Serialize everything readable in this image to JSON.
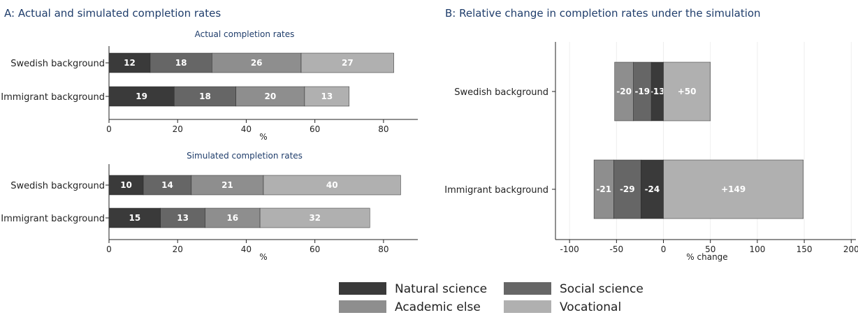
{
  "panel_a": {
    "title": "A: Actual and simulated completion rates"
  },
  "panel_b": {
    "title": "B: Relative change in completion rates under the simulation"
  },
  "colors": {
    "Natural science": "#3a3a3a",
    "Social science": "#666666",
    "Academic else": "#8e8e8e",
    "Vocational": "#b0b0b0"
  },
  "legend": [
    "Natural science",
    "Social science",
    "Academic else",
    "Vocational"
  ],
  "chart_data": [
    {
      "type": "bar",
      "orientation": "horizontal",
      "stacked": true,
      "title": "Actual completion rates",
      "xlabel": "%",
      "ylabel": "",
      "xlim": [
        0,
        90
      ],
      "xticks": [
        0,
        20,
        40,
        60,
        80
      ],
      "categories": [
        "Swedish background",
        "Immigrant background"
      ],
      "series": [
        {
          "name": "Natural science",
          "values": [
            12,
            19
          ]
        },
        {
          "name": "Social science",
          "values": [
            18,
            18
          ]
        },
        {
          "name": "Academic else",
          "values": [
            26,
            20
          ]
        },
        {
          "name": "Vocational",
          "values": [
            27,
            13
          ]
        }
      ]
    },
    {
      "type": "bar",
      "orientation": "horizontal",
      "stacked": true,
      "title": "Simulated completion rates",
      "xlabel": "%",
      "ylabel": "",
      "xlim": [
        0,
        90
      ],
      "xticks": [
        0,
        20,
        40,
        60,
        80
      ],
      "categories": [
        "Swedish background",
        "Immigrant background"
      ],
      "series": [
        {
          "name": "Natural science",
          "values": [
            10,
            15
          ]
        },
        {
          "name": "Social science",
          "values": [
            14,
            13
          ]
        },
        {
          "name": "Academic else",
          "values": [
            21,
            16
          ]
        },
        {
          "name": "Vocational",
          "values": [
            40,
            32
          ]
        }
      ]
    },
    {
      "type": "bar",
      "orientation": "horizontal",
      "stacked": true,
      "title": "",
      "xlabel": "% change",
      "ylabel": "",
      "xlim": [
        -115,
        205
      ],
      "xticks": [
        -100,
        -50,
        0,
        50,
        100,
        150,
        200
      ],
      "grid": true,
      "categories": [
        "Swedish background",
        "Immigrant background"
      ],
      "series": [
        {
          "name": "Natural science",
          "values": [
            -13,
            -24
          ],
          "labels": [
            "-13",
            "-24"
          ]
        },
        {
          "name": "Social science",
          "values": [
            -19,
            -29
          ],
          "labels": [
            "-19",
            "-29"
          ]
        },
        {
          "name": "Academic else",
          "values": [
            -20,
            -21
          ],
          "labels": [
            "-20",
            "-21"
          ]
        },
        {
          "name": "Vocational",
          "values": [
            50,
            149
          ],
          "labels": [
            "+50",
            "+149"
          ]
        }
      ]
    }
  ]
}
